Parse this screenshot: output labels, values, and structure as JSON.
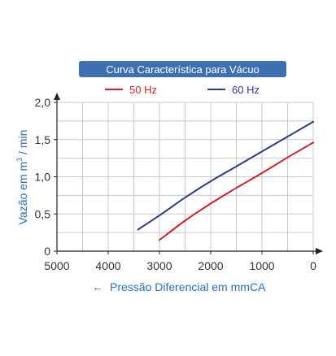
{
  "colors": {
    "title_bg": "#3d6fb5",
    "series_50hz": "#cc2229",
    "series_60hz": "#2e3a87",
    "axis_label": "#2f6db3",
    "grid": "#c9c9c9",
    "axis": "#222222"
  },
  "chart_data": {
    "type": "line",
    "title": "Curva Característica para Vácuo",
    "xlabel": "Pressão Diferencial em mmCA",
    "xlabel_arrow": "←",
    "ylabel_main": "Vazão em m",
    "ylabel_sup": "3",
    "ylabel_tail": " / min",
    "xlim": [
      5000,
      0
    ],
    "ylim": [
      0,
      2.0
    ],
    "x_ticks": [
      {
        "value": 5000,
        "label": "5000"
      },
      {
        "value": 4000,
        "label": "4000"
      },
      {
        "value": 3000,
        "label": "3000"
      },
      {
        "value": 2000,
        "label": "2000"
      },
      {
        "value": 1000,
        "label": "1000"
      },
      {
        "value": 0,
        "label": "0"
      }
    ],
    "y_ticks": [
      {
        "value": 0,
        "label": "0"
      },
      {
        "value": 0.5,
        "label": "0,5"
      },
      {
        "value": 1.0,
        "label": "1,0"
      },
      {
        "value": 1.5,
        "label": "1,5"
      },
      {
        "value": 2.0,
        "label": "2,0"
      }
    ],
    "x_grid_step": 500,
    "y_grid_step": 0.25,
    "grid": true,
    "legend_position": "top",
    "series": [
      {
        "name": "50 Hz",
        "color": "#cc2229",
        "points": [
          [
            3000,
            0.15
          ],
          [
            2500,
            0.41
          ],
          [
            2000,
            0.64
          ],
          [
            1500,
            0.85
          ],
          [
            1000,
            1.05
          ],
          [
            500,
            1.26
          ],
          [
            0,
            1.46
          ]
        ]
      },
      {
        "name": "60 Hz",
        "color": "#2e3a87",
        "points": [
          [
            3420,
            0.29
          ],
          [
            3000,
            0.48
          ],
          [
            2500,
            0.72
          ],
          [
            2000,
            0.94
          ],
          [
            1500,
            1.14
          ],
          [
            1000,
            1.34
          ],
          [
            500,
            1.54
          ],
          [
            0,
            1.74
          ]
        ]
      }
    ]
  }
}
